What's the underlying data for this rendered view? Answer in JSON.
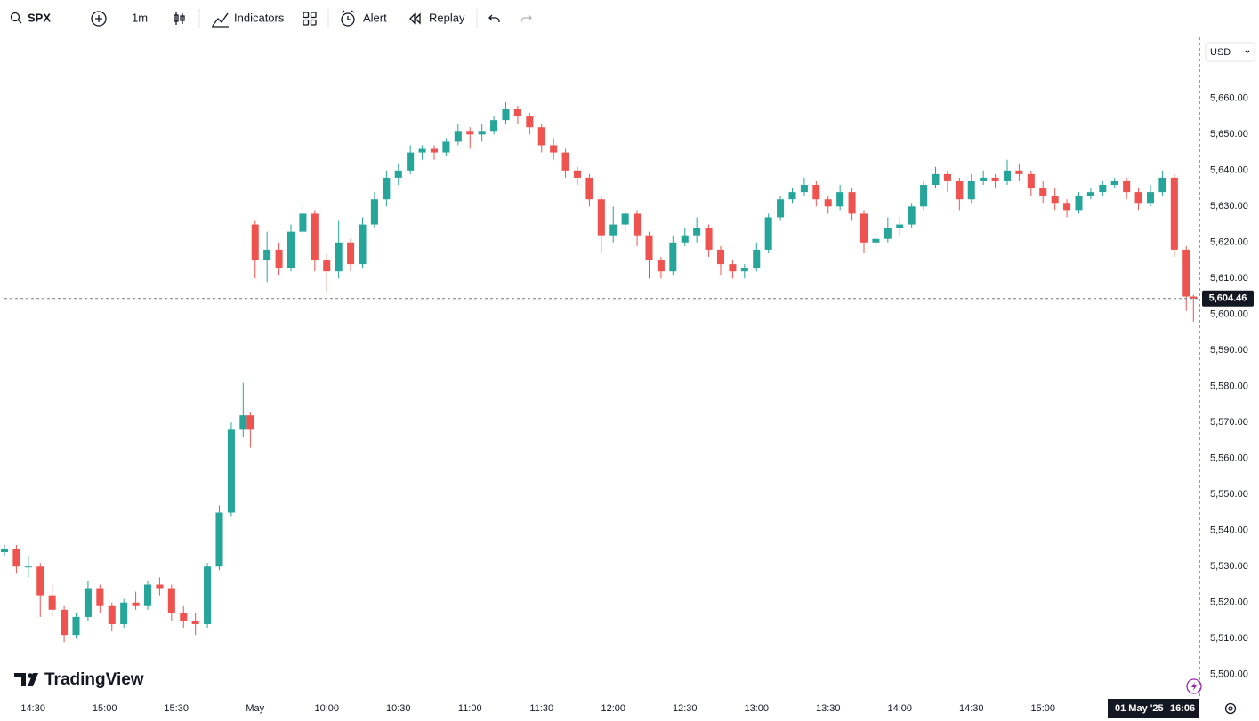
{
  "toolbar": {
    "symbol": "SPX",
    "interval": "1m",
    "indicators": "Indicators",
    "alert": "Alert",
    "replay": "Replay",
    "currency": "USD",
    "brand": "TradingView"
  },
  "chart_data": {
    "type": "candlestick",
    "up_color": "#26a69a",
    "down_color": "#ef5350",
    "grid": false,
    "x": [
      0,
      5,
      10,
      15,
      20,
      25,
      30,
      35,
      40,
      45,
      50,
      55,
      60,
      65,
      70,
      75,
      80,
      85,
      90,
      95,
      100,
      103,
      105,
      110,
      115,
      120,
      125,
      130,
      135,
      140,
      145,
      150,
      155,
      160,
      165,
      170,
      175,
      180,
      185,
      190,
      195,
      200,
      205,
      210,
      215,
      220,
      225,
      230,
      235,
      240,
      245,
      250,
      255,
      260,
      265,
      270,
      275,
      280,
      285,
      290,
      295,
      300,
      305,
      310,
      315,
      320,
      325,
      330,
      335,
      340,
      345,
      350,
      355,
      360,
      365,
      370,
      375,
      380,
      385,
      390,
      395,
      400,
      405,
      410,
      415,
      420,
      425,
      430,
      435,
      440,
      445,
      450,
      455,
      460,
      465,
      470,
      475,
      480,
      485,
      490,
      495,
      498
    ],
    "open": [
      5534,
      5535,
      5530,
      5530,
      5522,
      5518,
      5511,
      5516,
      5524,
      5519,
      5514,
      5520,
      5519,
      5525,
      5524,
      5517,
      5515,
      5514,
      5530,
      5545,
      5568,
      5572,
      5625,
      5615,
      5618,
      5613,
      5623,
      5628,
      5615,
      5612,
      5620,
      5614,
      5625,
      5632,
      5638,
      5640,
      5645,
      5646,
      5645,
      5648,
      5651,
      5650,
      5651,
      5654,
      5657,
      5655,
      5652,
      5647,
      5645,
      5640,
      5638,
      5632,
      5622,
      5625,
      5628,
      5622,
      5615,
      5612,
      5620,
      5622,
      5624,
      5618,
      5614,
      5612,
      5613,
      5618,
      5627,
      5632,
      5634,
      5636,
      5632,
      5630,
      5634,
      5628,
      5620,
      5621,
      5624,
      5625,
      5630,
      5636,
      5639,
      5637,
      5632,
      5637,
      5638,
      5637,
      5640,
      5639,
      5635,
      5633,
      5631,
      5629,
      5633,
      5634,
      5636,
      5637,
      5634,
      5631,
      5634,
      5638,
      5618,
      5605
    ],
    "high": [
      5536,
      5536,
      5533,
      5531,
      5525,
      5519,
      5517,
      5526,
      5525,
      5520,
      5521,
      5523,
      5526,
      5527,
      5525,
      5519,
      5517,
      5531,
      5547,
      5570,
      5581,
      5573,
      5626,
      5623,
      5620,
      5625,
      5631,
      5629,
      5617,
      5626,
      5621,
      5627,
      5634,
      5640,
      5642,
      5647,
      5647,
      5647,
      5649,
      5653,
      5652,
      5653,
      5655,
      5659,
      5658,
      5656,
      5653,
      5649,
      5646,
      5641,
      5639,
      5633,
      5630,
      5629,
      5629,
      5623,
      5616,
      5622,
      5624,
      5627,
      5625,
      5619,
      5615,
      5614,
      5620,
      5628,
      5633,
      5635,
      5638,
      5637,
      5633,
      5636,
      5635,
      5629,
      5623,
      5627,
      5627,
      5631,
      5637,
      5641,
      5640,
      5638,
      5639,
      5640,
      5639,
      5643,
      5642,
      5640,
      5637,
      5635,
      5632,
      5634,
      5635,
      5637,
      5638,
      5638,
      5635,
      5636,
      5640,
      5639,
      5619,
      5605.5
    ],
    "low": [
      5533,
      5528,
      5527,
      5516,
      5516,
      5509,
      5510,
      5515,
      5517,
      5512,
      5513,
      5518,
      5518,
      5522,
      5515,
      5513,
      5511,
      5513,
      5529,
      5544,
      5566,
      5563,
      5610,
      5609,
      5611,
      5612,
      5622,
      5612,
      5606,
      5610,
      5612,
      5613,
      5624,
      5630,
      5636,
      5639,
      5643,
      5643,
      5644,
      5647,
      5646,
      5648,
      5650,
      5653,
      5653,
      5650,
      5645,
      5643,
      5638,
      5636,
      5630,
      5617,
      5620,
      5623,
      5619,
      5610,
      5610,
      5611,
      5619,
      5620,
      5616,
      5611,
      5610,
      5610,
      5612,
      5617,
      5626,
      5631,
      5633,
      5630,
      5628,
      5629,
      5626,
      5617,
      5618,
      5620,
      5622,
      5624,
      5629,
      5635,
      5634,
      5629,
      5631,
      5636,
      5635,
      5636,
      5637,
      5633,
      5631,
      5629,
      5627,
      5628,
      5632,
      5633,
      5635,
      5632,
      5629,
      5630,
      5633,
      5616,
      5601,
      5598
    ],
    "close": [
      5535,
      5530,
      5530,
      5522,
      5518,
      5511,
      5516,
      5524,
      5519,
      5514,
      5520,
      5519,
      5525,
      5524,
      5517,
      5515,
      5514,
      5530,
      5545,
      5568,
      5572,
      5568,
      5615,
      5618,
      5613,
      5623,
      5628,
      5615,
      5612,
      5620,
      5614,
      5625,
      5632,
      5638,
      5640,
      5645,
      5646,
      5645,
      5648,
      5651,
      5650,
      5651,
      5654,
      5657,
      5655,
      5652,
      5647,
      5645,
      5640,
      5638,
      5632,
      5622,
      5625,
      5628,
      5622,
      5615,
      5612,
      5620,
      5622,
      5624,
      5618,
      5614,
      5612,
      5613,
      5618,
      5627,
      5632,
      5634,
      5636,
      5632,
      5630,
      5634,
      5628,
      5620,
      5621,
      5624,
      5625,
      5630,
      5636,
      5639,
      5637,
      5632,
      5637,
      5638,
      5637,
      5640,
      5639,
      5635,
      5633,
      5631,
      5629,
      5633,
      5634,
      5636,
      5637,
      5634,
      5631,
      5634,
      5638,
      5618,
      5605,
      5604.46
    ],
    "xlim": [
      0,
      500.5
    ],
    "ylim": [
      5494,
      5677
    ],
    "xticks": [
      {
        "value": 12,
        "label": "14:30"
      },
      {
        "value": 42,
        "label": "15:00"
      },
      {
        "value": 72,
        "label": "15:30"
      },
      {
        "value": 105,
        "label": "May"
      },
      {
        "value": 135,
        "label": "10:00"
      },
      {
        "value": 165,
        "label": "10:30"
      },
      {
        "value": 195,
        "label": "11:00"
      },
      {
        "value": 225,
        "label": "11:30"
      },
      {
        "value": 255,
        "label": "12:00"
      },
      {
        "value": 285,
        "label": "12:30"
      },
      {
        "value": 315,
        "label": "13:00"
      },
      {
        "value": 345,
        "label": "13:30"
      },
      {
        "value": 375,
        "label": "14:00"
      },
      {
        "value": 405,
        "label": "14:30"
      },
      {
        "value": 435,
        "label": "15:00"
      }
    ],
    "yticks": [
      {
        "value": 5500,
        "label": "5,500.00"
      },
      {
        "value": 5510,
        "label": "5,510.00"
      },
      {
        "value": 5520,
        "label": "5,520.00"
      },
      {
        "value": 5530,
        "label": "5,530.00"
      },
      {
        "value": 5540,
        "label": "5,540.00"
      },
      {
        "value": 5550,
        "label": "5,550.00"
      },
      {
        "value": 5560,
        "label": "5,560.00"
      },
      {
        "value": 5570,
        "label": "5,570.00"
      },
      {
        "value": 5580,
        "label": "5,580.00"
      },
      {
        "value": 5590,
        "label": "5,590.00"
      },
      {
        "value": 5600,
        "label": "5,600.00"
      },
      {
        "value": 5610,
        "label": "5,610.00"
      },
      {
        "value": 5620,
        "label": "5,620.00"
      },
      {
        "value": 5630,
        "label": "5,630.00"
      },
      {
        "value": 5640,
        "label": "5,640.00"
      },
      {
        "value": 5650,
        "label": "5,650.00"
      },
      {
        "value": 5660,
        "label": "5,660.00"
      }
    ],
    "last_price": {
      "value": 5604.46,
      "label": "5,604.46"
    },
    "crosshair": {
      "date": "01 May '25",
      "time": "16:06"
    }
  }
}
